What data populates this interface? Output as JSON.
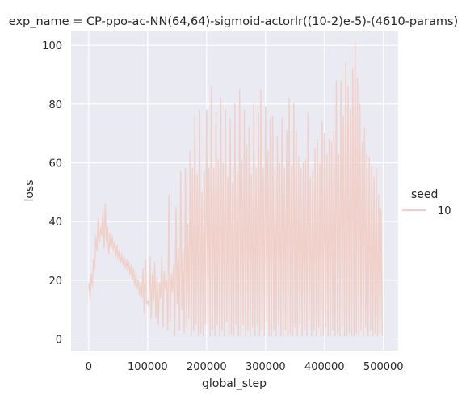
{
  "chart_data": {
    "type": "line",
    "title": "exp_name = CP-ppo-ac-NN(64,64)-sigmoid-actorlr((10-2)e-5)-(4610-params)",
    "xlabel": "global_step",
    "ylabel": "loss",
    "xlim": [
      -30000,
      525000
    ],
    "ylim": [
      -4,
      105
    ],
    "xticks": [
      0,
      100000,
      200000,
      300000,
      400000,
      500000
    ],
    "xtick_labels": [
      "0",
      "100000",
      "200000",
      "300000",
      "400000",
      "500000"
    ],
    "yticks": [
      0,
      20,
      40,
      60,
      80,
      100
    ],
    "ytick_labels": [
      "0",
      "20",
      "40",
      "60",
      "80",
      "100"
    ],
    "grid": true,
    "legend": {
      "title": "seed",
      "placement": "right",
      "entries": [
        "10"
      ]
    },
    "series": [
      {
        "name": "10",
        "color": "#f0d0c8",
        "x": [
          0,
          2000,
          4000,
          6000,
          8000,
          10000,
          12000,
          14000,
          16000,
          18000,
          20000,
          22000,
          24000,
          26000,
          28000,
          30000,
          32000,
          34000,
          36000,
          38000,
          40000,
          42000,
          44000,
          46000,
          48000,
          50000,
          52000,
          54000,
          56000,
          58000,
          60000,
          62000,
          64000,
          66000,
          68000,
          70000,
          72000,
          74000,
          76000,
          78000,
          80000,
          82000,
          84000,
          86000,
          88000,
          90000,
          92000,
          94000,
          96000,
          98000,
          100000,
          102000,
          104000,
          106000,
          108000,
          110000,
          112000,
          114000,
          116000,
          118000,
          120000,
          122000,
          124000,
          126000,
          128000,
          130000,
          132000,
          134000,
          136000,
          138000,
          140000,
          142000,
          144000,
          146000,
          148000,
          150000,
          152000,
          154000,
          156000,
          158000,
          160000,
          162000,
          164000,
          166000,
          168000,
          170000,
          172000,
          174000,
          176000,
          178000,
          180000,
          182000,
          184000,
          186000,
          188000,
          190000,
          192000,
          194000,
          196000,
          198000,
          200000,
          202000,
          204000,
          206000,
          208000,
          210000,
          212000,
          214000,
          216000,
          218000,
          220000,
          222000,
          224000,
          226000,
          228000,
          230000,
          232000,
          234000,
          236000,
          238000,
          240000,
          242000,
          244000,
          246000,
          248000,
          250000,
          252000,
          254000,
          256000,
          258000,
          260000,
          262000,
          264000,
          266000,
          268000,
          270000,
          272000,
          274000,
          276000,
          278000,
          280000,
          282000,
          284000,
          286000,
          288000,
          290000,
          292000,
          294000,
          296000,
          298000,
          300000,
          302000,
          304000,
          306000,
          308000,
          310000,
          312000,
          314000,
          316000,
          318000,
          320000,
          322000,
          324000,
          326000,
          328000,
          330000,
          332000,
          334000,
          336000,
          338000,
          340000,
          342000,
          344000,
          346000,
          348000,
          350000,
          352000,
          354000,
          356000,
          358000,
          360000,
          362000,
          364000,
          366000,
          368000,
          370000,
          372000,
          374000,
          376000,
          378000,
          380000,
          382000,
          384000,
          386000,
          388000,
          390000,
          392000,
          394000,
          396000,
          398000,
          400000,
          402000,
          404000,
          406000,
          408000,
          410000,
          412000,
          414000,
          416000,
          418000,
          420000,
          422000,
          424000,
          426000,
          428000,
          430000,
          432000,
          434000,
          436000,
          438000,
          440000,
          442000,
          444000,
          446000,
          448000,
          450000,
          452000,
          454000,
          456000,
          458000,
          460000,
          462000,
          464000,
          466000,
          468000,
          470000,
          472000,
          474000,
          476000,
          478000,
          480000,
          482000,
          484000,
          486000,
          488000,
          490000,
          492000,
          494000,
          496000,
          498000
        ],
        "y": [
          19,
          13,
          22,
          18,
          27,
          24,
          35,
          30,
          41,
          33,
          38,
          35,
          44,
          31,
          46,
          33,
          38,
          29,
          36,
          31,
          35,
          30,
          33,
          28,
          32,
          27,
          30,
          26,
          29,
          25,
          28,
          24,
          27,
          23,
          26,
          22,
          25,
          20,
          24,
          18,
          22,
          17,
          20,
          15,
          19,
          14,
          24,
          9,
          27,
          12,
          13,
          11,
          28,
          7,
          22,
          13,
          26,
          7,
          21,
          5,
          19,
          14,
          28,
          4,
          23,
          17,
          20,
          3,
          49,
          6,
          22,
          16,
          25,
          1,
          45,
          12,
          31,
          3,
          57,
          10,
          31,
          2,
          58,
          4,
          39,
          7,
          64,
          1,
          58,
          3,
          76,
          5,
          56,
          1,
          78,
          2,
          50,
          1,
          57,
          5,
          78,
          5,
          58,
          1,
          86,
          3,
          58,
          1,
          77,
          5,
          61,
          1,
          82,
          3,
          60,
          1,
          78,
          6,
          55,
          1,
          75,
          2,
          53,
          1,
          80,
          5,
          57,
          1,
          85,
          1,
          61,
          5,
          78,
          1,
          66,
          3,
          72,
          1,
          56,
          4,
          80,
          1,
          58,
          5,
          77,
          1,
          85,
          3,
          58,
          1,
          79,
          6,
          64,
          1,
          75,
          1,
          76,
          3,
          57,
          1,
          69,
          5,
          60,
          1,
          75,
          1,
          58,
          3,
          71,
          1,
          82,
          2,
          59,
          1,
          80,
          4,
          71,
          1,
          62,
          5,
          58,
          1,
          60,
          3,
          61,
          1,
          77,
          6,
          55,
          1,
          57,
          3,
          65,
          1,
          68,
          4,
          60,
          1,
          74,
          1,
          70,
          4,
          63,
          1,
          68,
          1,
          67,
          3,
          71,
          1,
          88,
          2,
          63,
          1,
          88,
          4,
          76,
          1,
          94,
          1,
          86,
          2,
          78,
          1,
          92,
          1,
          101,
          2,
          89,
          1,
          80,
          3,
          67,
          1,
          72,
          4,
          63,
          1,
          62,
          3,
          59,
          1,
          55,
          2,
          58,
          1,
          49,
          2,
          44,
          1
        ]
      }
    ]
  }
}
